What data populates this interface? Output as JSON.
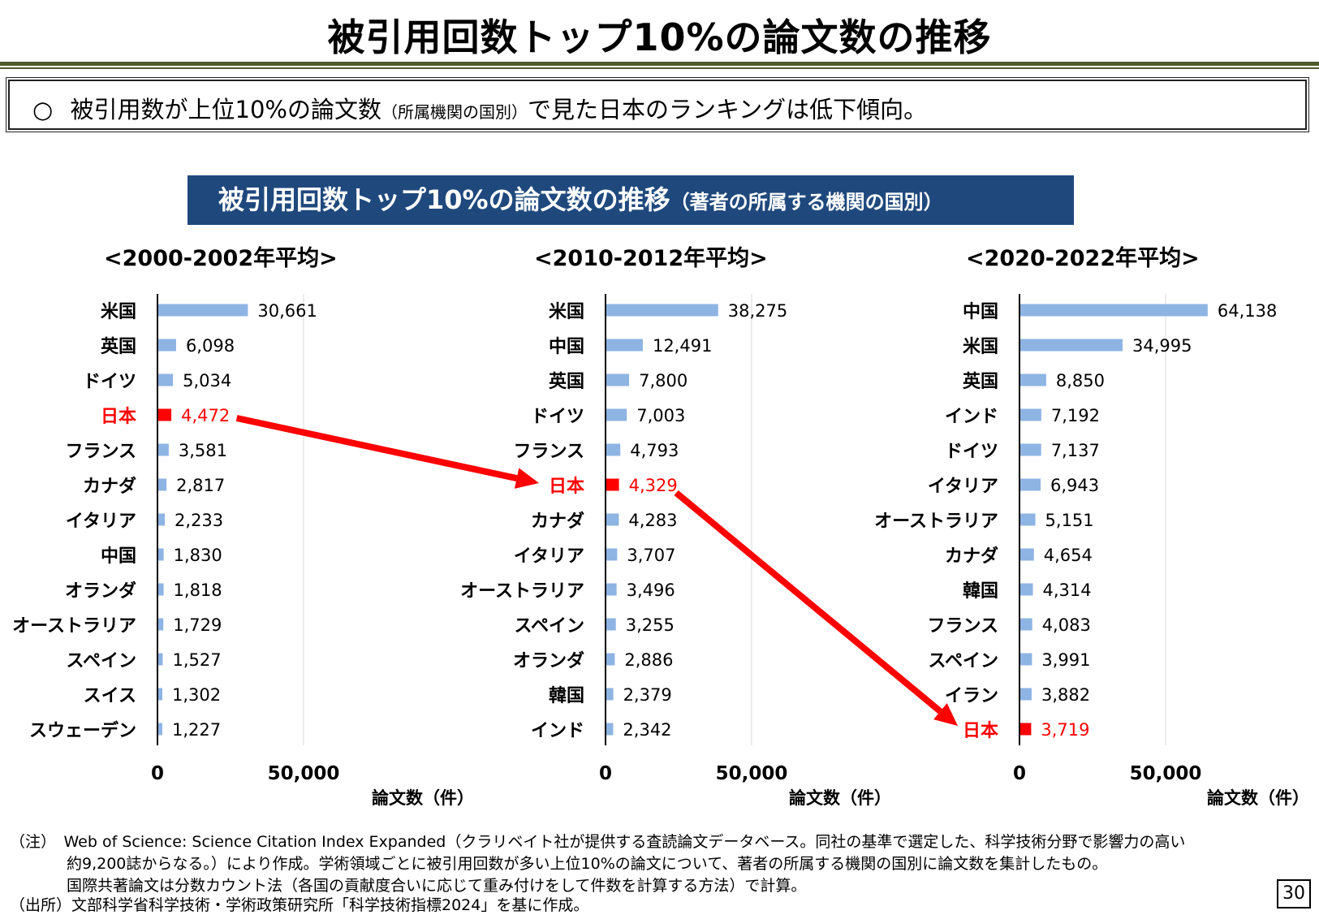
{
  "title": "被引用回数トップ10%の論文数の推移",
  "summary": {
    "bullet": "○",
    "text_before": "被引用数が上位10%の論文数",
    "text_small": "（所属機関の国別）",
    "text_after": "で見た日本のランキングは低下傾向。"
  },
  "chart_header": {
    "main": "被引用回数トップ10%の論文数の推移",
    "sub": "（著者の所属する機関の国別）"
  },
  "colors": {
    "bar": "#8eb4e3",
    "highlight": "#ff0000",
    "header_bg": "#1f497d",
    "arrow": "#ff0000"
  },
  "chart_data": [
    {
      "type": "bar",
      "title": "<2000-2002年平均>",
      "xlabel": "論文数（件）",
      "xlim": [
        0,
        100000
      ],
      "xticks": [
        "0",
        "50,000"
      ],
      "highlight": "日本",
      "categories": [
        "米国",
        "英国",
        "ドイツ",
        "日本",
        "フランス",
        "カナダ",
        "イタリア",
        "中国",
        "オランダ",
        "オーストラリア",
        "スペイン",
        "スイス",
        "スウェーデン"
      ],
      "values": [
        30661,
        6098,
        5034,
        4472,
        3581,
        2817,
        2233,
        1830,
        1818,
        1729,
        1527,
        1302,
        1227
      ],
      "labels": [
        "30,661",
        "6,098",
        "5,034",
        "4,472",
        "3,581",
        "2,817",
        "2,233",
        "1,830",
        "1,818",
        "1,729",
        "1,527",
        "1,302",
        "1,227"
      ]
    },
    {
      "type": "bar",
      "title": "<2010-2012年平均>",
      "xlabel": "論文数（件）",
      "xlim": [
        0,
        100000
      ],
      "xticks": [
        "0",
        "50,000"
      ],
      "highlight": "日本",
      "categories": [
        "米国",
        "中国",
        "英国",
        "ドイツ",
        "フランス",
        "日本",
        "カナダ",
        "イタリア",
        "オーストラリア",
        "スペイン",
        "オランダ",
        "韓国",
        "インド"
      ],
      "values": [
        38275,
        12491,
        7800,
        7003,
        4793,
        4329,
        4283,
        3707,
        3496,
        3255,
        2886,
        2379,
        2342
      ],
      "labels": [
        "38,275",
        "12,491",
        "7,800",
        "7,003",
        "4,793",
        "4,329",
        "4,283",
        "3,707",
        "3,496",
        "3,255",
        "2,886",
        "2,379",
        "2,342"
      ]
    },
    {
      "type": "bar",
      "title": "<2020-2022年平均>",
      "xlabel": "論文数（件）",
      "xlim": [
        0,
        100000
      ],
      "xticks": [
        "0",
        "50,000"
      ],
      "highlight": "日本",
      "categories": [
        "中国",
        "米国",
        "英国",
        "インド",
        "ドイツ",
        "イタリア",
        "オーストラリア",
        "カナダ",
        "韓国",
        "フランス",
        "スペイン",
        "イラン",
        "日本"
      ],
      "values": [
        64138,
        34995,
        8850,
        7192,
        7137,
        6943,
        5151,
        4654,
        4314,
        4083,
        3991,
        3882,
        3719
      ],
      "labels": [
        "64,138",
        "34,995",
        "8,850",
        "7,192",
        "7,137",
        "6,943",
        "5,151",
        "4,654",
        "4,314",
        "4,083",
        "3,991",
        "3,882",
        "3,719"
      ]
    }
  ],
  "notes": [
    "（注）　Web of Science: Science Citation Index Expanded（クラリベイト社が提供する査読論文データベース。同社の基準で選定した、科学技術分野で影響力の高い",
    "約9,200誌からなる。）により作成。学術領域ごとに被引用回数が多い上位10%の論文について、著者の所属する機関の国別に論文数を集計したもの。",
    "国際共著論文は分数カウント法（各国の貢献度合いに応じて重み付けをして件数を計算する方法）で計算。",
    "（出所）文部科学省科学技術・学術政策研究所「科学技術指標2024」を基に作成。"
  ],
  "page_number": "30"
}
